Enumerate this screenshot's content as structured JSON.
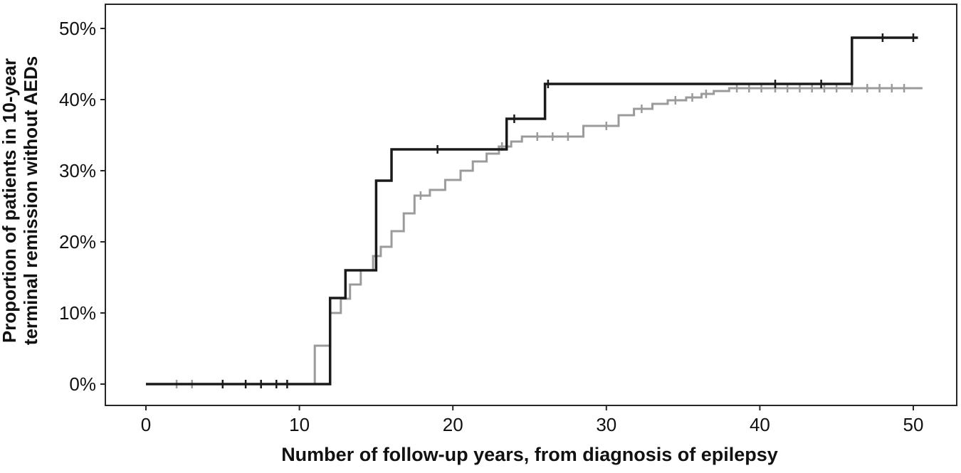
{
  "chart_data": {
    "type": "line",
    "chart_style": "kaplan-meier-step",
    "title": "",
    "xlabel": "Number of follow-up years, from diagnosis of epilepsy",
    "ylabel": "Proportion of patients in 10-year terminal remission without AEDs",
    "ylabel_lines": [
      "Proportion of patients in 10-year",
      "terminal remission without AEDs"
    ],
    "xlim": [
      0,
      52.8
    ],
    "ylim": [
      0,
      53.4
    ],
    "x_ticks": [
      0,
      10,
      20,
      30,
      40,
      50
    ],
    "y_ticks": [
      0,
      10,
      20,
      30,
      40,
      50
    ],
    "y_tick_suffix": "%",
    "x_tick_suffix": "",
    "grid": false,
    "legend": "none",
    "series": [
      {
        "name": "series-gray",
        "color": "#9b9b9b",
        "line_width": 3,
        "end_x": 50.6,
        "steps": [
          [
            0,
            0
          ],
          [
            11,
            5.4
          ],
          [
            12,
            10.0
          ],
          [
            12.7,
            12.0
          ],
          [
            13.3,
            14.0
          ],
          [
            14,
            16.0
          ],
          [
            14.8,
            18.0
          ],
          [
            15.3,
            19.3
          ],
          [
            16,
            21.5
          ],
          [
            16.8,
            24.0
          ],
          [
            17.5,
            26.5
          ],
          [
            18.5,
            27.3
          ],
          [
            19.5,
            28.7
          ],
          [
            20.5,
            30.0
          ],
          [
            21.3,
            31.3
          ],
          [
            22.2,
            32.4
          ],
          [
            23,
            33.4
          ],
          [
            23.8,
            34.1
          ],
          [
            24.5,
            34.8
          ],
          [
            28.5,
            36.3
          ],
          [
            30.8,
            37.8
          ],
          [
            31.8,
            38.7
          ],
          [
            33,
            39.4
          ],
          [
            34,
            39.9
          ],
          [
            35.2,
            40.3
          ],
          [
            36.2,
            40.8
          ],
          [
            37,
            41.2
          ],
          [
            38,
            41.6
          ]
        ],
        "censor_marks": [
          [
            2,
            0
          ],
          [
            3,
            0
          ],
          [
            17.9,
            26.5
          ],
          [
            23.2,
            33.4
          ],
          [
            25.5,
            34.8
          ],
          [
            26.5,
            34.8
          ],
          [
            27.5,
            34.8
          ],
          [
            30,
            36.3
          ],
          [
            32.3,
            38.7
          ],
          [
            34.5,
            39.9
          ],
          [
            35.6,
            40.3
          ],
          [
            36.5,
            40.8
          ],
          [
            38.5,
            41.6
          ],
          [
            39.3,
            41.6
          ],
          [
            40.1,
            41.6
          ],
          [
            41,
            41.6
          ],
          [
            41.8,
            41.6
          ],
          [
            42.6,
            41.6
          ],
          [
            43.4,
            41.6
          ],
          [
            44.2,
            41.6
          ],
          [
            45,
            41.6
          ],
          [
            46,
            41.6
          ],
          [
            47,
            41.6
          ],
          [
            47.8,
            41.6
          ],
          [
            48.6,
            41.6
          ],
          [
            49.4,
            41.6
          ]
        ]
      },
      {
        "name": "series-black",
        "color": "#1a1a1a",
        "line_width": 3.5,
        "end_x": 50.3,
        "steps": [
          [
            0,
            0
          ],
          [
            12,
            12.1
          ],
          [
            13,
            16.0
          ],
          [
            15,
            28.6
          ],
          [
            16,
            33.0
          ],
          [
            23.5,
            37.3
          ],
          [
            26,
            42.2
          ],
          [
            46,
            48.7
          ]
        ],
        "censor_marks": [
          [
            5,
            0
          ],
          [
            6.5,
            0
          ],
          [
            7.5,
            0
          ],
          [
            8.5,
            0
          ],
          [
            9.2,
            0
          ],
          [
            19,
            33.0
          ],
          [
            24,
            37.3
          ],
          [
            26.2,
            42.2
          ],
          [
            41,
            42.2
          ],
          [
            44,
            42.2
          ],
          [
            48,
            48.7
          ],
          [
            50,
            48.7
          ]
        ]
      }
    ]
  }
}
